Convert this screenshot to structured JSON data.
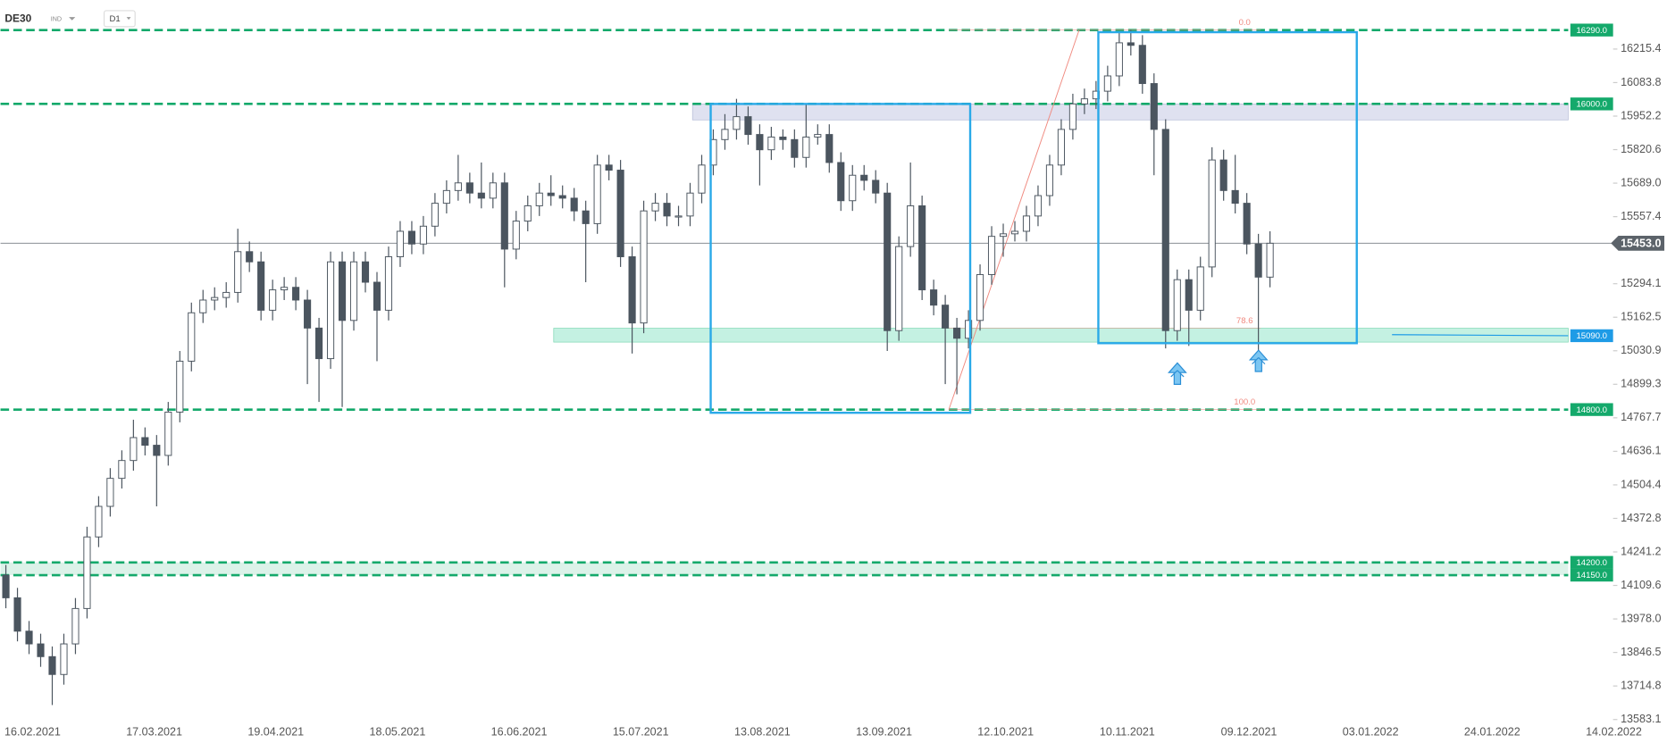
{
  "chart_data": {
    "type": "candlestick",
    "symbol": "DE30",
    "instrument": "IND",
    "timeframe": "D1",
    "categories": [
      "16.02.2021",
      "17.03.2021",
      "19.04.2021",
      "18.05.2021",
      "16.06.2021",
      "15.07.2021",
      "13.08.2021",
      "13.09.2021",
      "12.10.2021",
      "10.11.2021",
      "09.12.2021",
      "03.01.2022",
      "24.01.2022",
      "14.02.2022"
    ],
    "ylim": [
      13558,
      16408
    ],
    "yticks": [
      16215.4,
      16083.8,
      15952.2,
      15820.6,
      {
        "value": 15689.0,
        "label": "15689.0"
      },
      15557.4,
      15294.1,
      15162.5,
      15030.9,
      14899.3,
      14767.7,
      14636.1,
      14504.4,
      14372.8,
      14241.2,
      14109.6,
      {
        "value": 13978.0,
        "label": "13978.0"
      },
      13846.5,
      13714.8,
      13583.1
    ],
    "up_color": "#ffffff",
    "down_color": "#4b555f",
    "candles": [
      [
        14150,
        14190,
        14020,
        14061
      ],
      [
        14061,
        14100,
        13890,
        13930
      ],
      [
        13930,
        13970,
        13840,
        13880
      ],
      [
        13880,
        13920,
        13790,
        13830
      ],
      [
        13830,
        13870,
        13640,
        13760
      ],
      [
        13760,
        13920,
        13720,
        13880
      ],
      [
        13880,
        14060,
        13840,
        14019
      ],
      [
        14019,
        14340,
        13980,
        14300
      ],
      [
        14300,
        14460,
        14260,
        14420
      ],
      [
        14420,
        14570,
        14380,
        14530
      ],
      [
        14530,
        14640,
        14490,
        14600
      ],
      [
        14600,
        14760,
        14560,
        14690
      ],
      [
        14690,
        14730,
        14620,
        14660
      ],
      [
        14660,
        14700,
        14420,
        14620
      ],
      [
        14620,
        14830,
        14580,
        14790
      ],
      [
        14790,
        15030,
        14750,
        14990
      ],
      [
        14990,
        15220,
        14950,
        15180
      ],
      [
        15180,
        15270,
        15140,
        15230
      ],
      [
        15230,
        15280,
        15190,
        15240
      ],
      [
        15240,
        15300,
        15200,
        15260
      ],
      [
        15260,
        15510,
        15220,
        15420
      ],
      [
        15420,
        15460,
        15340,
        15380
      ],
      [
        15380,
        15420,
        15150,
        15190
      ],
      [
        15190,
        15310,
        15150,
        15270
      ],
      [
        15270,
        15320,
        15230,
        15280
      ],
      [
        15280,
        15320,
        15190,
        15230
      ],
      [
        15230,
        15270,
        14900,
        15120
      ],
      [
        15120,
        15160,
        14830,
        15000
      ],
      [
        15000,
        15420,
        14960,
        15380
      ],
      [
        15380,
        15420,
        14810,
        15150
      ],
      [
        15150,
        15420,
        15110,
        15380
      ],
      [
        15380,
        15420,
        15260,
        15300
      ],
      [
        15300,
        15340,
        14990,
        15190
      ],
      [
        15190,
        15440,
        15150,
        15400
      ],
      [
        15400,
        15540,
        15360,
        15500
      ],
      [
        15500,
        15540,
        15410,
        15450
      ],
      [
        15450,
        15560,
        15410,
        15520
      ],
      [
        15520,
        15650,
        15480,
        15610
      ],
      [
        15610,
        15700,
        15570,
        15660
      ],
      [
        15660,
        15800,
        15620,
        15690
      ],
      [
        15690,
        15730,
        15610,
        15650
      ],
      [
        15650,
        15770,
        15590,
        15630
      ],
      [
        15630,
        15730,
        15590,
        15690
      ],
      [
        15690,
        15730,
        15280,
        15430
      ],
      [
        15430,
        15580,
        15390,
        15540
      ],
      [
        15540,
        15640,
        15500,
        15600
      ],
      [
        15600,
        15690,
        15560,
        15650
      ],
      [
        15650,
        15720,
        15600,
        15640
      ],
      [
        15640,
        15680,
        15590,
        15630
      ],
      [
        15630,
        15670,
        15540,
        15580
      ],
      [
        15580,
        15620,
        15300,
        15530
      ],
      [
        15530,
        15800,
        15490,
        15760
      ],
      [
        15760,
        15800,
        15700,
        15740
      ],
      [
        15740,
        15780,
        15360,
        15400
      ],
      [
        15400,
        15440,
        15020,
        15140
      ],
      [
        15140,
        15620,
        15100,
        15580
      ],
      [
        15580,
        15650,
        15540,
        15610
      ],
      [
        15610,
        15650,
        15520,
        15560
      ],
      [
        15560,
        15600,
        15520,
        15560
      ],
      [
        15560,
        15690,
        15520,
        15650
      ],
      [
        15650,
        15800,
        15610,
        15760
      ],
      [
        15760,
        15900,
        15720,
        15860
      ],
      [
        15860,
        15960,
        15820,
        15900
      ],
      [
        15900,
        16020,
        15860,
        15950
      ],
      [
        15950,
        15990,
        15840,
        15880
      ],
      [
        15880,
        15920,
        15680,
        15820
      ],
      [
        15820,
        15910,
        15780,
        15870
      ],
      [
        15870,
        15900,
        15820,
        15860
      ],
      [
        15860,
        15900,
        15750,
        15790
      ],
      [
        15790,
        16000,
        15750,
        15870
      ],
      [
        15870,
        15920,
        15840,
        15880
      ],
      [
        15880,
        15920,
        15730,
        15770
      ],
      [
        15770,
        15810,
        15580,
        15620
      ],
      [
        15620,
        15760,
        15580,
        15720
      ],
      [
        15720,
        15760,
        15660,
        15700
      ],
      [
        15700,
        15740,
        15610,
        15650
      ],
      [
        15650,
        15690,
        15030,
        15110
      ],
      [
        15110,
        15480,
        15070,
        15440
      ],
      [
        15440,
        15770,
        15400,
        15600
      ],
      [
        15600,
        15640,
        15230,
        15270
      ],
      [
        15270,
        15310,
        15170,
        15210
      ],
      [
        15210,
        15250,
        14900,
        15120
      ],
      [
        15120,
        15160,
        14860,
        15080
      ],
      [
        15080,
        15190,
        15040,
        15150
      ],
      [
        15150,
        15370,
        15110,
        15330
      ],
      [
        15330,
        15520,
        15290,
        15480
      ],
      [
        15480,
        15530,
        15400,
        15490
      ],
      [
        15490,
        15540,
        15460,
        15500
      ],
      [
        15500,
        15600,
        15460,
        15560
      ],
      [
        15560,
        15680,
        15520,
        15640
      ],
      [
        15640,
        15800,
        15600,
        15760
      ],
      [
        15760,
        15940,
        15720,
        15900
      ],
      [
        15900,
        16040,
        15860,
        16000
      ],
      [
        16000,
        16060,
        15960,
        16020
      ],
      [
        16020,
        16090,
        15980,
        16050
      ],
      [
        16050,
        16150,
        16010,
        16110
      ],
      [
        16110,
        16280,
        16070,
        16240
      ],
      [
        16240,
        16290,
        16190,
        16230
      ],
      [
        16230,
        16270,
        16040,
        16080
      ],
      [
        16080,
        16120,
        15720,
        15900
      ],
      [
        15900,
        15940,
        15040,
        15110
      ],
      [
        15110,
        15350,
        15070,
        15310
      ],
      [
        15310,
        15350,
        15050,
        15190
      ],
      [
        15190,
        15400,
        15150,
        15360
      ],
      [
        15360,
        15830,
        15320,
        15780
      ],
      [
        15780,
        15820,
        15620,
        15660
      ],
      [
        15660,
        15800,
        15570,
        15610
      ],
      [
        15610,
        15650,
        15410,
        15450
      ],
      [
        15450,
        15490,
        15030,
        15320
      ],
      [
        15320,
        15500,
        15280,
        15453
      ]
    ],
    "levels": [
      {
        "value": 16290,
        "label": "16290.0",
        "color": "#14a96b",
        "dashed": true
      },
      {
        "value": 16000,
        "label": "16000.0",
        "color": "#14a96b",
        "dashed": true
      },
      {
        "value": 15090,
        "label": "15090.0",
        "color": "#1e9be6",
        "dashed": false
      },
      {
        "value": 14800,
        "label": "14800.0",
        "color": "#14a96b",
        "dashed": true
      },
      {
        "value": 14200,
        "label": "14200.0",
        "color": "#14a96b",
        "dashed": true
      },
      {
        "value": 14150,
        "label": "14150.0",
        "color": "#14a96b",
        "dashed": true
      }
    ],
    "current_price": {
      "value": 15453,
      "label": "15453.0",
      "color": "#5c636a"
    },
    "fibonacci": [
      {
        "value": 0,
        "label": "0.0"
      },
      {
        "value": 78.6,
        "label": "78.6"
      },
      {
        "value": 100,
        "label": "100.0"
      }
    ],
    "fib_color": "#f08a80"
  }
}
